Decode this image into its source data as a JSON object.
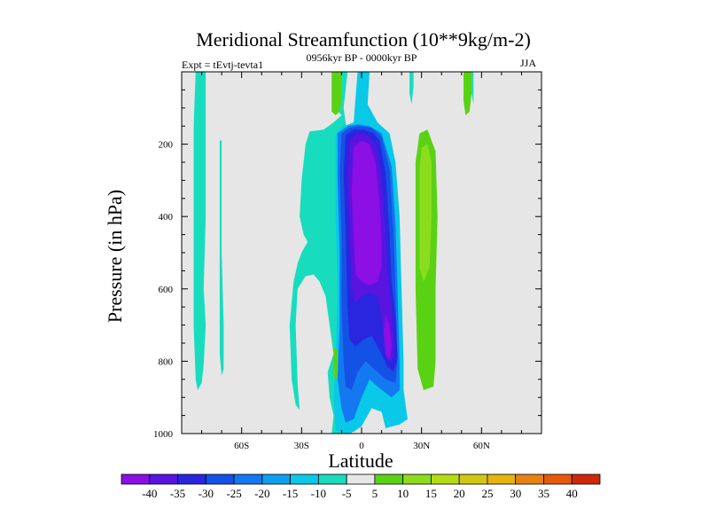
{
  "chart_data": {
    "type": "heatmap",
    "title": "Meridional Streamfunction (10**9kg/m-2)",
    "subtitle_left": "Expt = tEvtj-tevta1",
    "subtitle_center": "0956kyr BP - 0000kyr BP",
    "subtitle_right": "JJA",
    "xlabel": "Latitude",
    "ylabel": "Pressure (in hPa)",
    "xlim": [
      -90,
      90
    ],
    "ylim": [
      1000,
      0
    ],
    "x_ticks": [
      {
        "value": -60,
        "label": "60S"
      },
      {
        "value": -30,
        "label": "30S"
      },
      {
        "value": 0,
        "label": "0"
      },
      {
        "value": 30,
        "label": "30N"
      },
      {
        "value": 60,
        "label": "60N"
      }
    ],
    "y_ticks": [
      {
        "value": 200,
        "label": "200"
      },
      {
        "value": 400,
        "label": "400"
      },
      {
        "value": 600,
        "label": "600"
      },
      {
        "value": 800,
        "label": "800"
      },
      {
        "value": 1000,
        "label": "1000"
      }
    ],
    "background_color": "#e6e6e6",
    "colorbar": {
      "labels": [
        "-40",
        "-35",
        "-30",
        "-25",
        "-20",
        "-15",
        "-10",
        "-5",
        "5",
        "10",
        "15",
        "20",
        "25",
        "30",
        "35",
        "40"
      ],
      "colors": [
        "#8c0fe6",
        "#5a14e0",
        "#2a26e0",
        "#1452e6",
        "#1478f0",
        "#0ca0f0",
        "#0ac8e8",
        "#18dcbe",
        "#e6e6e6",
        "#5ad214",
        "#8cdc1e",
        "#b4dc14",
        "#d2c814",
        "#e6b40a",
        "#e68214",
        "#e65a0a",
        "#d2280a"
      ]
    },
    "regions": [
      {
        "name": "southern-tropics-negative",
        "value": -5,
        "color": "#18dcbe",
        "polygon": [
          [
            -19,
            160
          ],
          [
            -14,
            140
          ],
          [
            -10,
            120
          ],
          [
            -13,
            100
          ],
          [
            -11,
            0
          ],
          [
            -7,
            0
          ],
          [
            -9,
            100
          ],
          [
            -8,
            140
          ],
          [
            -7,
            170
          ],
          [
            -6,
            300
          ],
          [
            -8,
            500
          ],
          [
            -5,
            600
          ],
          [
            -6,
            700
          ],
          [
            -8,
            800
          ],
          [
            -6,
            900
          ],
          [
            -3,
            960
          ],
          [
            -5,
            1000
          ],
          [
            -15,
            1000
          ],
          [
            -14,
            950
          ],
          [
            -16,
            900
          ],
          [
            -17,
            830
          ],
          [
            -14,
            780
          ],
          [
            -16,
            700
          ],
          [
            -18,
            620
          ],
          [
            -21,
            580
          ],
          [
            -24,
            560
          ],
          [
            -28,
            565
          ],
          [
            -32,
            600
          ],
          [
            -33,
            700
          ],
          [
            -32,
            860
          ],
          [
            -31,
            935
          ],
          [
            -33,
            920
          ],
          [
            -35,
            850
          ],
          [
            -36,
            700
          ],
          [
            -34,
            580
          ],
          [
            -32,
            530
          ],
          [
            -30,
            500
          ],
          [
            -27,
            470
          ],
          [
            -29,
            450
          ],
          [
            -31,
            400
          ],
          [
            -30,
            300
          ],
          [
            -28,
            200
          ],
          [
            -26,
            165
          ]
        ]
      },
      {
        "name": "equatorial-core-10",
        "value": -10,
        "color": "#0ac8e8",
        "polygon": [
          [
            -13,
            170
          ],
          [
            -9,
            150
          ],
          [
            -4,
            140
          ],
          [
            -2,
            0
          ],
          [
            4,
            0
          ],
          [
            3,
            90
          ],
          [
            8,
            140
          ],
          [
            14,
            170
          ],
          [
            17,
            250
          ],
          [
            19,
            400
          ],
          [
            20,
            600
          ],
          [
            21,
            800
          ],
          [
            21,
            880
          ],
          [
            23,
            960
          ],
          [
            19,
            975
          ],
          [
            12,
            985
          ],
          [
            10,
            940
          ],
          [
            5,
            930
          ],
          [
            0,
            980
          ],
          [
            -4,
            995
          ],
          [
            -8,
            1000
          ],
          [
            -13,
            990
          ],
          [
            -14,
            900
          ],
          [
            -13,
            800
          ],
          [
            -12,
            600
          ],
          [
            -13,
            400
          ],
          [
            -13,
            250
          ]
        ]
      },
      {
        "name": "equatorial-core-20",
        "value": -20,
        "color": "#1478f0",
        "polygon": [
          [
            -12,
            170
          ],
          [
            -7,
            150
          ],
          [
            -2,
            145
          ],
          [
            4,
            150
          ],
          [
            10,
            170
          ],
          [
            15,
            260
          ],
          [
            17,
            420
          ],
          [
            18,
            600
          ],
          [
            19,
            800
          ],
          [
            19,
            880
          ],
          [
            15,
            900
          ],
          [
            8,
            870
          ],
          [
            4,
            850
          ],
          [
            0,
            900
          ],
          [
            -4,
            960
          ],
          [
            -8,
            970
          ],
          [
            -10,
            930
          ],
          [
            -12,
            850
          ],
          [
            -11,
            700
          ],
          [
            -11,
            500
          ],
          [
            -12,
            300
          ]
        ]
      },
      {
        "name": "equatorial-core-25",
        "value": -25,
        "color": "#1452e6",
        "polygon": [
          [
            -10,
            170
          ],
          [
            -6,
            155
          ],
          [
            -1,
            150
          ],
          [
            5,
            155
          ],
          [
            10,
            180
          ],
          [
            14,
            270
          ],
          [
            16,
            450
          ],
          [
            17,
            600
          ],
          [
            18,
            800
          ],
          [
            17,
            860
          ],
          [
            12,
            850
          ],
          [
            6,
            820
          ],
          [
            2,
            800
          ],
          [
            -2,
            830
          ],
          [
            -5,
            880
          ],
          [
            -8,
            870
          ],
          [
            -9,
            800
          ],
          [
            -10,
            650
          ],
          [
            -10,
            450
          ],
          [
            -11,
            280
          ]
        ]
      },
      {
        "name": "equatorial-core-30",
        "value": -30,
        "color": "#2a26e0",
        "polygon": [
          [
            -8,
            175
          ],
          [
            -4,
            160
          ],
          [
            1,
            160
          ],
          [
            6,
            170
          ],
          [
            9,
            190
          ],
          [
            12,
            280
          ],
          [
            14,
            450
          ],
          [
            15,
            580
          ],
          [
            17,
            680
          ],
          [
            18,
            790
          ],
          [
            16,
            830
          ],
          [
            13,
            815
          ],
          [
            9,
            770
          ],
          [
            5,
            730
          ],
          [
            1,
            740
          ],
          [
            -3,
            760
          ],
          [
            -6,
            740
          ],
          [
            -7,
            650
          ],
          [
            -8,
            450
          ],
          [
            -9,
            280
          ]
        ]
      },
      {
        "name": "equatorial-core-35",
        "value": -35,
        "color": "#5a14e0",
        "polygon": [
          [
            -6,
            190
          ],
          [
            -2,
            170
          ],
          [
            3,
            175
          ],
          [
            7,
            200
          ],
          [
            10,
            300
          ],
          [
            12,
            450
          ],
          [
            13,
            560
          ],
          [
            15,
            650
          ],
          [
            16,
            720
          ],
          [
            16,
            790
          ],
          [
            14,
            800
          ],
          [
            12,
            760
          ],
          [
            10,
            680
          ],
          [
            8,
            620
          ],
          [
            4,
            610
          ],
          [
            0,
            620
          ],
          [
            -3,
            640
          ],
          [
            -5,
            600
          ],
          [
            -6,
            450
          ],
          [
            -7,
            300
          ]
        ]
      },
      {
        "name": "equatorial-core-40",
        "value": -40,
        "color": "#8c0fe6",
        "polygon": [
          [
            -4,
            210
          ],
          [
            0,
            190
          ],
          [
            4,
            200
          ],
          [
            7,
            250
          ],
          [
            9,
            360
          ],
          [
            10,
            470
          ],
          [
            10,
            540
          ],
          [
            8,
            580
          ],
          [
            4,
            590
          ],
          [
            0,
            580
          ],
          [
            -3,
            560
          ],
          [
            -4,
            450
          ],
          [
            -5,
            330
          ]
        ]
      },
      {
        "name": "lower-minimum-40",
        "value": -40,
        "color": "#8c0fe6",
        "polygon": [
          [
            12,
            670
          ],
          [
            14,
            700
          ],
          [
            15,
            760
          ],
          [
            14,
            800
          ],
          [
            12,
            780
          ],
          [
            11,
            720
          ]
        ]
      },
      {
        "name": "southern-high-latitude-strip",
        "value": -5,
        "color": "#18dcbe",
        "polygon": [
          [
            -83,
            0
          ],
          [
            -78,
            0
          ],
          [
            -78,
            200
          ],
          [
            -78,
            400
          ],
          [
            -79,
            600
          ],
          [
            -78,
            700
          ],
          [
            -79,
            810
          ],
          [
            -80,
            860
          ],
          [
            -82,
            880
          ],
          [
            -83,
            850
          ],
          [
            -84,
            700
          ],
          [
            -84,
            400
          ],
          [
            -84,
            150
          ]
        ]
      },
      {
        "name": "southern-thin-strip",
        "value": -5,
        "color": "#18dcbe",
        "polygon": [
          [
            -71,
            190
          ],
          [
            -70,
            190
          ],
          [
            -70,
            500
          ],
          [
            -69,
            700
          ],
          [
            -69,
            820
          ],
          [
            -70,
            840
          ],
          [
            -71,
            780
          ],
          [
            -71,
            500
          ]
        ]
      },
      {
        "name": "upper-positive-patch",
        "value": 10,
        "color": "#5ad214",
        "polygon": [
          [
            -15,
            0
          ],
          [
            -10,
            0
          ],
          [
            -10,
            80
          ],
          [
            -11,
            110
          ],
          [
            -13,
            120
          ],
          [
            -15,
            110
          ],
          [
            -15,
            60
          ]
        ]
      },
      {
        "name": "lower-positive-patch",
        "value": 10,
        "color": "#5ad214",
        "polygon": [
          [
            -14,
            760
          ],
          [
            -12,
            770
          ],
          [
            -12,
            830
          ],
          [
            -13,
            860
          ],
          [
            -14,
            830
          ]
        ]
      },
      {
        "name": "northern-positive-10",
        "value": 10,
        "color": "#5ad214",
        "polygon": [
          [
            29,
            170
          ],
          [
            33,
            160
          ],
          [
            37,
            220
          ],
          [
            38,
            400
          ],
          [
            37,
            600
          ],
          [
            37,
            800
          ],
          [
            36,
            870
          ],
          [
            31,
            880
          ],
          [
            28,
            820
          ],
          [
            27,
            600
          ],
          [
            27,
            400
          ],
          [
            27,
            250
          ]
        ]
      },
      {
        "name": "northern-positive-15",
        "value": 15,
        "color": "#8cdc1e",
        "polygon": [
          [
            30,
            210
          ],
          [
            33,
            200
          ],
          [
            35,
            250
          ],
          [
            35,
            400
          ],
          [
            34,
            540
          ],
          [
            31,
            580
          ],
          [
            29,
            540
          ],
          [
            29,
            380
          ],
          [
            29,
            270
          ]
        ]
      },
      {
        "name": "northern-strip-near-pole",
        "value": -5,
        "color": "#18dcbe",
        "polygon": [
          [
            24,
            0
          ],
          [
            26,
            0
          ],
          [
            26,
            40
          ],
          [
            25,
            90
          ],
          [
            24,
            60
          ]
        ]
      },
      {
        "name": "northern-upper-strip",
        "value": 10,
        "color": "#5ad214",
        "polygon": [
          [
            51,
            0
          ],
          [
            55,
            0
          ],
          [
            55,
            60
          ],
          [
            54,
            110
          ],
          [
            52,
            120
          ],
          [
            51,
            80
          ]
        ]
      },
      {
        "name": "northern-upper-strip-2",
        "value": -5,
        "color": "#18dcbe",
        "polygon": [
          [
            55,
            0
          ],
          [
            56,
            0
          ],
          [
            56,
            90
          ],
          [
            55,
            60
          ]
        ]
      },
      {
        "name": "northern-blank",
        "value": 5,
        "color": "#e6e6e6",
        "polygon": [
          [
            21,
            0
          ],
          [
            23,
            0
          ],
          [
            22,
            80
          ],
          [
            21,
            40
          ]
        ]
      }
    ]
  }
}
